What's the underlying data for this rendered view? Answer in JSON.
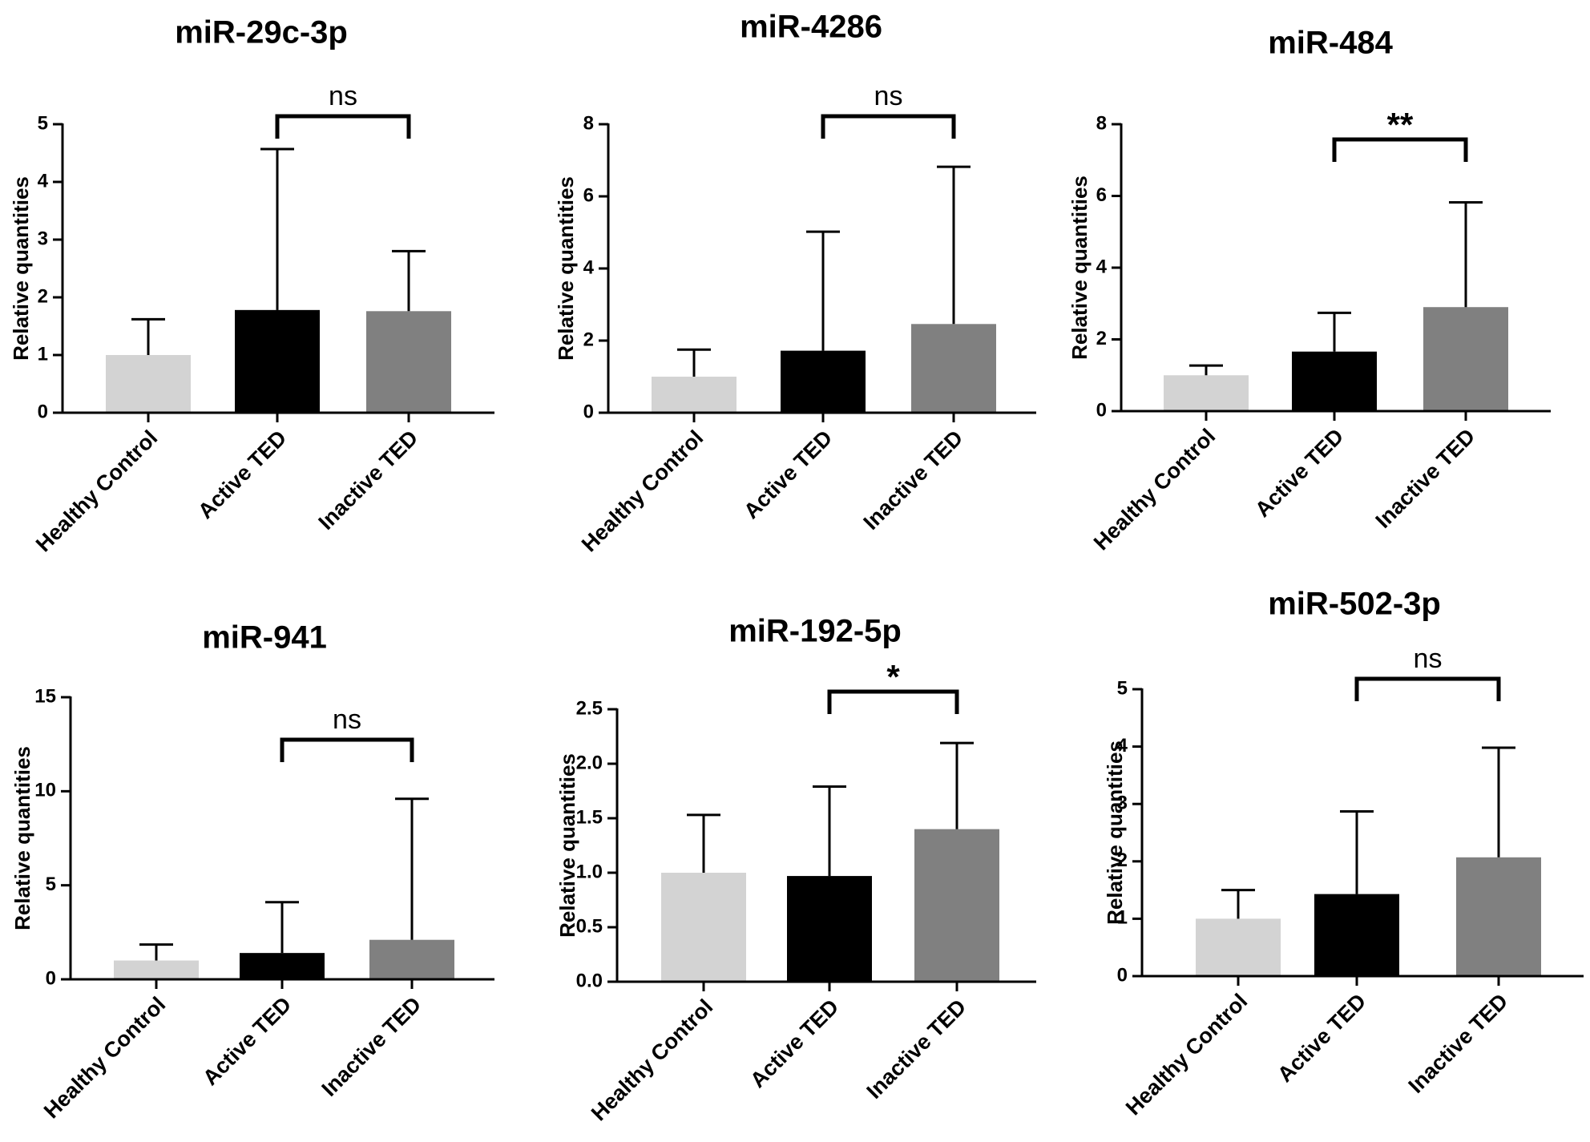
{
  "chart_data": [
    {
      "type": "bar",
      "title": "miR-29c-3p",
      "xlabel": "",
      "ylabel": "Relative quantities",
      "ylim": [
        0,
        5
      ],
      "yticks": [
        "0",
        "1",
        "2",
        "3",
        "4",
        "5"
      ],
      "categories": [
        "Healthy Control",
        "Active TED",
        "Inactive TED"
      ],
      "values": [
        1.0,
        1.78,
        1.76
      ],
      "error_upper": [
        1.62,
        4.57,
        2.8
      ],
      "colors": [
        "#d3d3d3",
        "#000000",
        "#808080"
      ],
      "significance": {
        "label": "ns",
        "from": 1,
        "to": 2
      }
    },
    {
      "type": "bar",
      "title": "miR-4286",
      "xlabel": "",
      "ylabel": "Relative quantities",
      "ylim": [
        0,
        8
      ],
      "yticks": [
        "0",
        "2",
        "4",
        "6",
        "8"
      ],
      "categories": [
        "Healthy Control",
        "Active TED",
        "Inactive TED"
      ],
      "values": [
        1.0,
        1.72,
        2.46
      ],
      "error_upper": [
        1.75,
        5.02,
        6.82
      ],
      "colors": [
        "#d3d3d3",
        "#000000",
        "#808080"
      ],
      "significance": {
        "label": "ns",
        "from": 1,
        "to": 2
      }
    },
    {
      "type": "bar",
      "title": "miR-484",
      "xlabel": "",
      "ylabel": "Relative quantities",
      "ylim": [
        0,
        8
      ],
      "yticks": [
        "0",
        "2",
        "4",
        "6",
        "8"
      ],
      "categories": [
        "Healthy Control",
        "Active TED",
        "Inactive TED"
      ],
      "values": [
        1.0,
        1.66,
        2.9
      ],
      "error_upper": [
        1.27,
        2.74,
        5.82
      ],
      "colors": [
        "#d3d3d3",
        "#000000",
        "#808080"
      ],
      "significance": {
        "label": "**",
        "from": 1,
        "to": 2
      }
    },
    {
      "type": "bar",
      "title": "miR-941",
      "xlabel": "",
      "ylabel": "Relative quantities",
      "ylim": [
        0,
        15
      ],
      "yticks": [
        "0",
        "5",
        "10",
        "15"
      ],
      "categories": [
        "Healthy Control",
        "Active TED",
        "Inactive TED"
      ],
      "values": [
        1.0,
        1.4,
        2.1
      ],
      "error_upper": [
        1.85,
        4.1,
        9.6
      ],
      "colors": [
        "#d3d3d3",
        "#000000",
        "#808080"
      ],
      "significance": {
        "label": "ns",
        "from": 1,
        "to": 2
      }
    },
    {
      "type": "bar",
      "title": "miR-192-5p",
      "xlabel": "",
      "ylabel": "Relative quantities",
      "ylim": [
        0,
        2.5
      ],
      "yticks": [
        "0.0",
        "0.5",
        "1.0",
        "1.5",
        "2.0",
        "2.5"
      ],
      "categories": [
        "Healthy Control",
        "Active TED",
        "Inactive TED"
      ],
      "values": [
        1.0,
        0.97,
        1.4
      ],
      "error_upper": [
        1.53,
        1.79,
        2.19
      ],
      "colors": [
        "#d3d3d3",
        "#000000",
        "#808080"
      ],
      "significance": {
        "label": "*",
        "from": 1,
        "to": 2
      }
    },
    {
      "type": "bar",
      "title": "miR-502-3p",
      "xlabel": "",
      "ylabel": "Relative quantities",
      "ylim": [
        0,
        5
      ],
      "yticks": [
        "0",
        "1",
        "2",
        "3",
        "4",
        "5"
      ],
      "categories": [
        "Healthy Control",
        "Active TED",
        "Inactive TED"
      ],
      "values": [
        1.0,
        1.43,
        2.07
      ],
      "error_upper": [
        1.5,
        2.87,
        3.98
      ],
      "colors": [
        "#d3d3d3",
        "#000000",
        "#808080"
      ],
      "significance": {
        "label": "ns",
        "from": 1,
        "to": 2
      }
    }
  ]
}
